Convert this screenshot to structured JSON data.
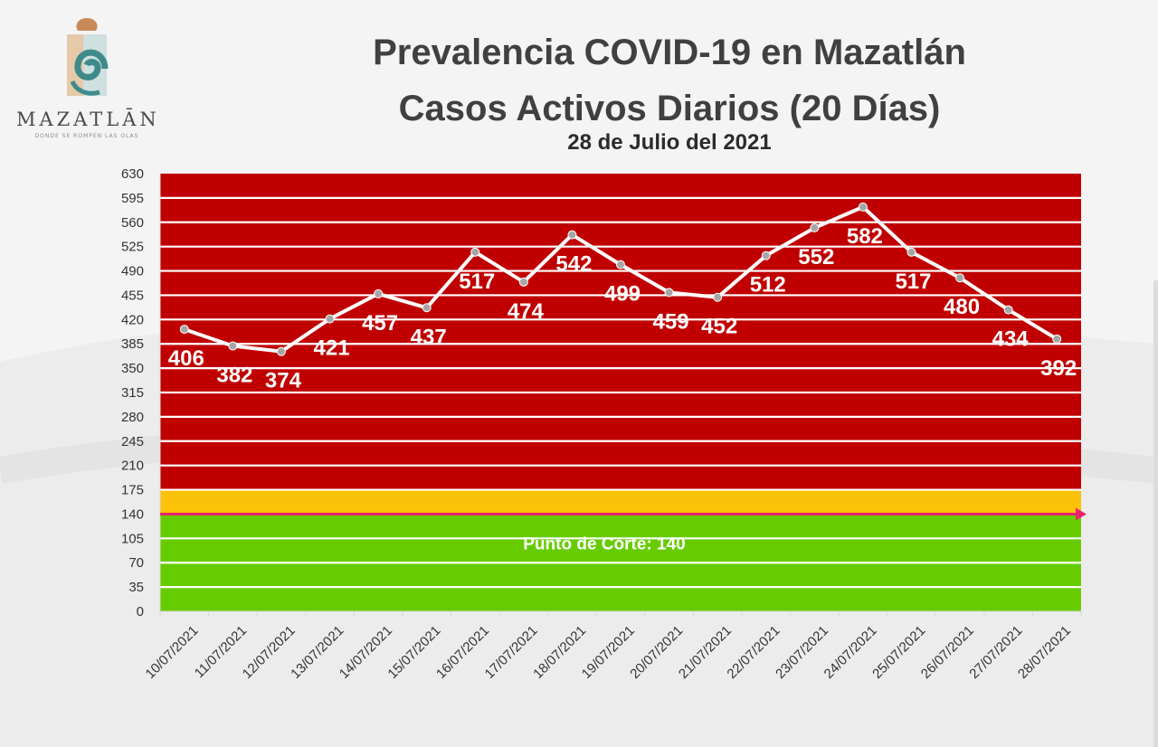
{
  "logo": {
    "name": "MAZATLĀN",
    "tagline": "DONDE SE ROMPEN LAS OLAS"
  },
  "chart_data": {
    "type": "line",
    "title": "Prevalencia COVID-19 en Mazatlán",
    "subtitle": "Casos Activos Diarios (20 Días)",
    "date": "28 de Julio del 2021",
    "categories": [
      "10/07/2021",
      "11/07/2021",
      "12/07/2021",
      "13/07/2021",
      "14/07/2021",
      "15/07/2021",
      "16/07/2021",
      "17/07/2021",
      "18/07/2021",
      "19/07/2021",
      "20/07/2021",
      "21/07/2021",
      "22/07/2021",
      "23/07/2021",
      "24/07/2021",
      "25/07/2021",
      "26/07/2021",
      "27/07/2021",
      "28/07/2021"
    ],
    "values": [
      406,
      382,
      374,
      421,
      457,
      437,
      517,
      474,
      542,
      499,
      459,
      452,
      512,
      552,
      582,
      517,
      480,
      434,
      392
    ],
    "ylim": [
      0,
      630
    ],
    "yticks": [
      0,
      35,
      70,
      105,
      140,
      175,
      210,
      245,
      280,
      315,
      350,
      385,
      420,
      455,
      490,
      525,
      560,
      595,
      630
    ],
    "grid": true,
    "zones": [
      {
        "from": 0,
        "to": 140,
        "color": "#66cc00"
      },
      {
        "from": 140,
        "to": 175,
        "color": "#fcc20a"
      },
      {
        "from": 175,
        "to": 630,
        "color": "#c00000"
      }
    ],
    "cutoff": {
      "value": 140,
      "label": "Punto de Corte: 140",
      "color": "#e8226e"
    },
    "line_color": "#ffffff",
    "marker_color": "#a6a6a6"
  }
}
